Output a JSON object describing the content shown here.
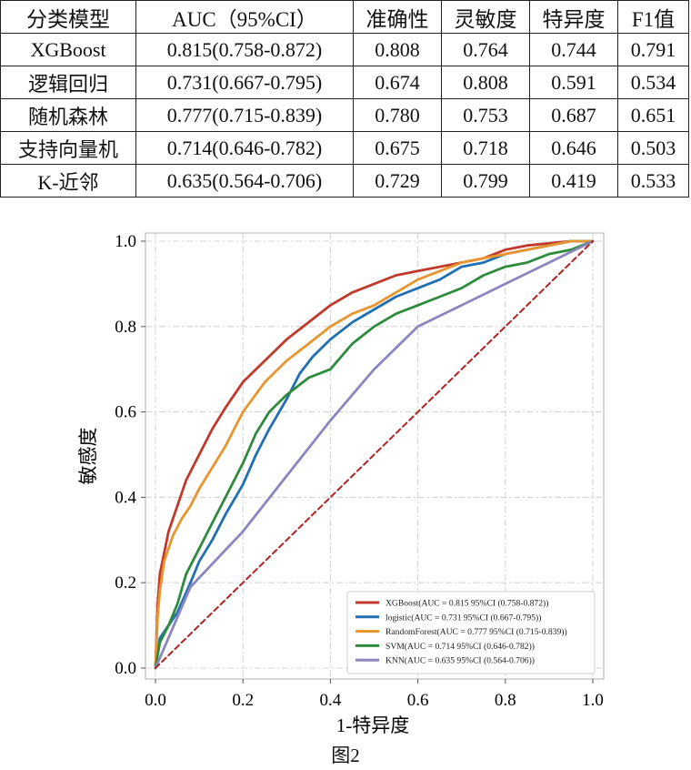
{
  "table": {
    "headers": [
      "分类模型",
      "AUC（95%CI）",
      "准确性",
      "灵敏度",
      "特异度",
      "F1值"
    ],
    "rows": [
      [
        "XGBoost",
        "0.815(0.758-0.872)",
        "0.808",
        "0.764",
        "0.744",
        "0.791"
      ],
      [
        "逻辑回归",
        "0.731(0.667-0.795)",
        "0.674",
        "0.808",
        "0.591",
        "0.534"
      ],
      [
        "随机森林",
        "0.777(0.715-0.839)",
        "0.780",
        "0.753",
        "0.687",
        "0.651"
      ],
      [
        "支持向量机",
        "0.714(0.646-0.782)",
        "0.675",
        "0.718",
        "0.646",
        "0.503"
      ],
      [
        "K-近邻",
        "0.635(0.564-0.706)",
        "0.729",
        "0.799",
        "0.419",
        "0.533"
      ]
    ]
  },
  "chart_data": {
    "type": "line",
    "title": "",
    "xlabel": "1-特异度",
    "ylabel": "敏感度",
    "xlim": [
      0,
      1
    ],
    "ylim": [
      0,
      1
    ],
    "xticks": [
      "0.0",
      "0.2",
      "0.4",
      "0.6",
      "0.8",
      "1.0"
    ],
    "yticks": [
      "0.0",
      "0.2",
      "0.4",
      "0.6",
      "0.8",
      "1.0"
    ],
    "grid": true,
    "legend": "bottom-right",
    "series": [
      {
        "name": "XGBoost(AUC = 0.815 95%CI (0.758-0.872))",
        "color": "#c0392b",
        "x": [
          0,
          0.005,
          0.01,
          0.02,
          0.03,
          0.05,
          0.07,
          0.1,
          0.13,
          0.16,
          0.2,
          0.25,
          0.3,
          0.35,
          0.4,
          0.45,
          0.5,
          0.55,
          0.6,
          0.65,
          0.7,
          0.75,
          0.8,
          0.85,
          0.9,
          0.95,
          1.0
        ],
        "y": [
          0,
          0.15,
          0.22,
          0.27,
          0.32,
          0.38,
          0.44,
          0.5,
          0.56,
          0.61,
          0.67,
          0.72,
          0.77,
          0.81,
          0.85,
          0.88,
          0.9,
          0.92,
          0.93,
          0.94,
          0.95,
          0.96,
          0.98,
          0.99,
          0.995,
          1.0,
          1.0
        ]
      },
      {
        "name": "logistic(AUC = 0.731 95%CI (0.667-0.795))",
        "color": "#1f6fb2",
        "x": [
          0,
          0.01,
          0.03,
          0.05,
          0.08,
          0.1,
          0.13,
          0.16,
          0.2,
          0.23,
          0.26,
          0.3,
          0.33,
          0.36,
          0.4,
          0.45,
          0.5,
          0.55,
          0.6,
          0.65,
          0.7,
          0.75,
          0.8,
          0.85,
          0.9,
          0.95,
          1.0
        ],
        "y": [
          0,
          0.07,
          0.1,
          0.13,
          0.2,
          0.25,
          0.3,
          0.36,
          0.43,
          0.5,
          0.56,
          0.63,
          0.69,
          0.73,
          0.77,
          0.81,
          0.84,
          0.87,
          0.89,
          0.91,
          0.94,
          0.95,
          0.97,
          0.98,
          0.99,
          1.0,
          1.0
        ]
      },
      {
        "name": "RandomForest(AUC = 0.777 95%CI (0.715-0.839))",
        "color": "#e8952e",
        "x": [
          0,
          0.005,
          0.01,
          0.02,
          0.04,
          0.06,
          0.08,
          0.1,
          0.13,
          0.16,
          0.2,
          0.25,
          0.3,
          0.35,
          0.4,
          0.45,
          0.5,
          0.55,
          0.6,
          0.65,
          0.7,
          0.75,
          0.8,
          0.85,
          0.9,
          0.95,
          1.0
        ],
        "y": [
          0,
          0.12,
          0.18,
          0.25,
          0.31,
          0.35,
          0.38,
          0.42,
          0.47,
          0.52,
          0.6,
          0.67,
          0.72,
          0.76,
          0.8,
          0.83,
          0.85,
          0.88,
          0.91,
          0.93,
          0.95,
          0.96,
          0.97,
          0.98,
          0.99,
          1.0,
          1.0
        ]
      },
      {
        "name": "SVM(AUC = 0.714 95%CI (0.646-0.782))",
        "color": "#2e8b3e",
        "x": [
          0,
          0.01,
          0.03,
          0.05,
          0.07,
          0.1,
          0.13,
          0.16,
          0.2,
          0.23,
          0.26,
          0.3,
          0.35,
          0.4,
          0.45,
          0.5,
          0.55,
          0.6,
          0.65,
          0.7,
          0.75,
          0.8,
          0.85,
          0.9,
          0.95,
          1.0
        ],
        "y": [
          0,
          0.06,
          0.1,
          0.15,
          0.22,
          0.28,
          0.34,
          0.4,
          0.48,
          0.55,
          0.6,
          0.64,
          0.68,
          0.7,
          0.76,
          0.8,
          0.83,
          0.85,
          0.87,
          0.89,
          0.92,
          0.94,
          0.95,
          0.97,
          0.98,
          1.0
        ]
      },
      {
        "name": "KNN(AUC = 0.635 95%CI (0.564-0.706))",
        "color": "#8c86c0",
        "x": [
          0,
          0.08,
          0.2,
          0.3,
          0.4,
          0.5,
          0.6,
          0.7,
          0.8,
          0.9,
          1.0
        ],
        "y": [
          0,
          0.19,
          0.32,
          0.45,
          0.58,
          0.7,
          0.8,
          0.85,
          0.9,
          0.95,
          1.0
        ]
      },
      {
        "name": "",
        "color": "#b22222",
        "dashed": true,
        "x": [
          0,
          1
        ],
        "y": [
          0,
          1
        ]
      }
    ]
  },
  "caption": "图2"
}
